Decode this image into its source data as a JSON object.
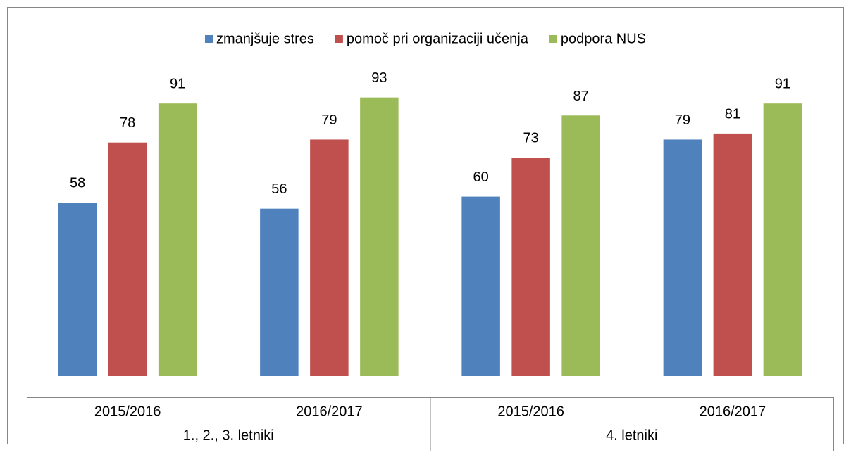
{
  "chart_data": {
    "type": "bar",
    "categories": [
      "2015/2016",
      "2016/2017",
      "2015/2016",
      "2016/2017"
    ],
    "groups": [
      {
        "label": "1., 2., 3. letniki",
        "span": 2
      },
      {
        "label": "4. letniki",
        "span": 2
      }
    ],
    "series": [
      {
        "name": "zmanjšuje stres",
        "color": "#4f81bd",
        "values": [
          58,
          56,
          60,
          79
        ]
      },
      {
        "name": "pomoč pri organizaciji učenja",
        "color": "#c0504d",
        "values": [
          78,
          79,
          73,
          81
        ]
      },
      {
        "name": "podpora NUS",
        "color": "#9bbb59",
        "values": [
          91,
          93,
          87,
          91
        ]
      }
    ],
    "ylim": [
      -7,
      100
    ],
    "legend": "top"
  }
}
